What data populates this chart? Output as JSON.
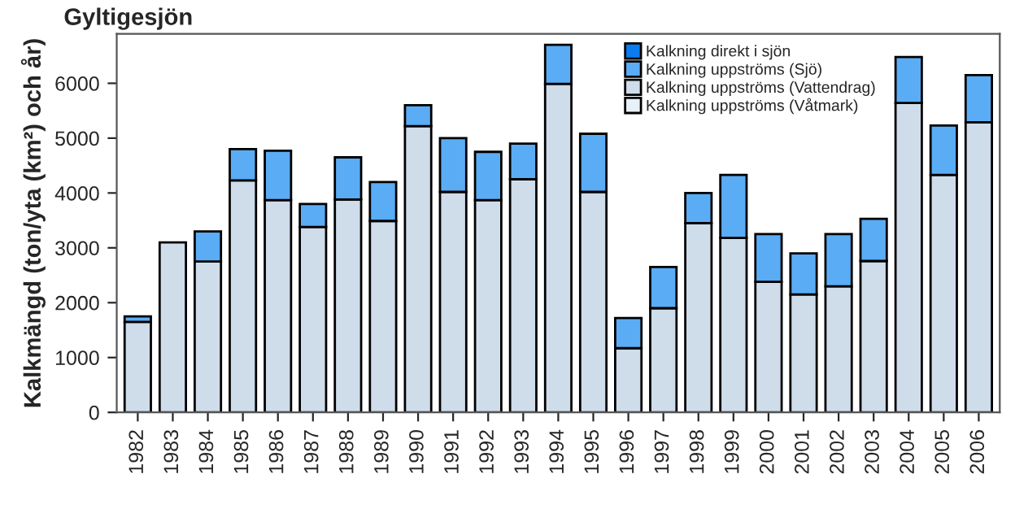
{
  "chart_data": {
    "type": "bar",
    "title": "Gyltigesjön",
    "ylabel": "Kalkmängd (ton/yta (km²) och år)",
    "categories": [
      "1982",
      "1983",
      "1984",
      "1985",
      "1986",
      "1987",
      "1988",
      "1989",
      "1990",
      "1991",
      "1992",
      "1993",
      "1994",
      "1995",
      "1996",
      "1997",
      "1998",
      "1999",
      "2000",
      "2001",
      "2002",
      "2003",
      "2004",
      "2005",
      "2006"
    ],
    "stacked": true,
    "series": [
      {
        "name": "Kalkning uppströms (Våtmark)",
        "color": "#e8f0f8",
        "values": [
          null,
          null,
          null,
          null,
          null,
          null,
          null,
          null,
          null,
          null,
          null,
          null,
          null,
          null,
          null,
          null,
          null,
          null,
          null,
          null,
          null,
          null,
          null,
          null,
          null
        ]
      },
      {
        "name": "Kalkning uppströms (Vattendrag)",
        "color": "#cfdcea",
        "values": [
          1650,
          3100,
          2750,
          4230,
          3870,
          3380,
          3880,
          3490,
          5220,
          4020,
          3870,
          4250,
          5990,
          4020,
          1170,
          1900,
          3450,
          3180,
          2380,
          2150,
          2300,
          2760,
          5640,
          4330,
          5290
        ]
      },
      {
        "name": "Kalkning uppströms (Sjö)",
        "color": "#5aacf5",
        "values": [
          100,
          null,
          550,
          570,
          900,
          420,
          770,
          710,
          380,
          980,
          880,
          650,
          710,
          1060,
          550,
          750,
          550,
          1150,
          870,
          750,
          950,
          770,
          840,
          900,
          860
        ]
      },
      {
        "name": "Kalkning direkt i sjön",
        "color": "#0a7cf0",
        "values": [
          null,
          null,
          null,
          null,
          null,
          null,
          null,
          null,
          null,
          null,
          null,
          null,
          null,
          null,
          null,
          null,
          null,
          null,
          null,
          null,
          null,
          null,
          null,
          null,
          null
        ]
      }
    ],
    "ylim": [
      0,
      6900
    ],
    "yticks": [
      0,
      1000,
      2000,
      3000,
      4000,
      5000,
      6000
    ],
    "grid": false,
    "legend": "top"
  }
}
